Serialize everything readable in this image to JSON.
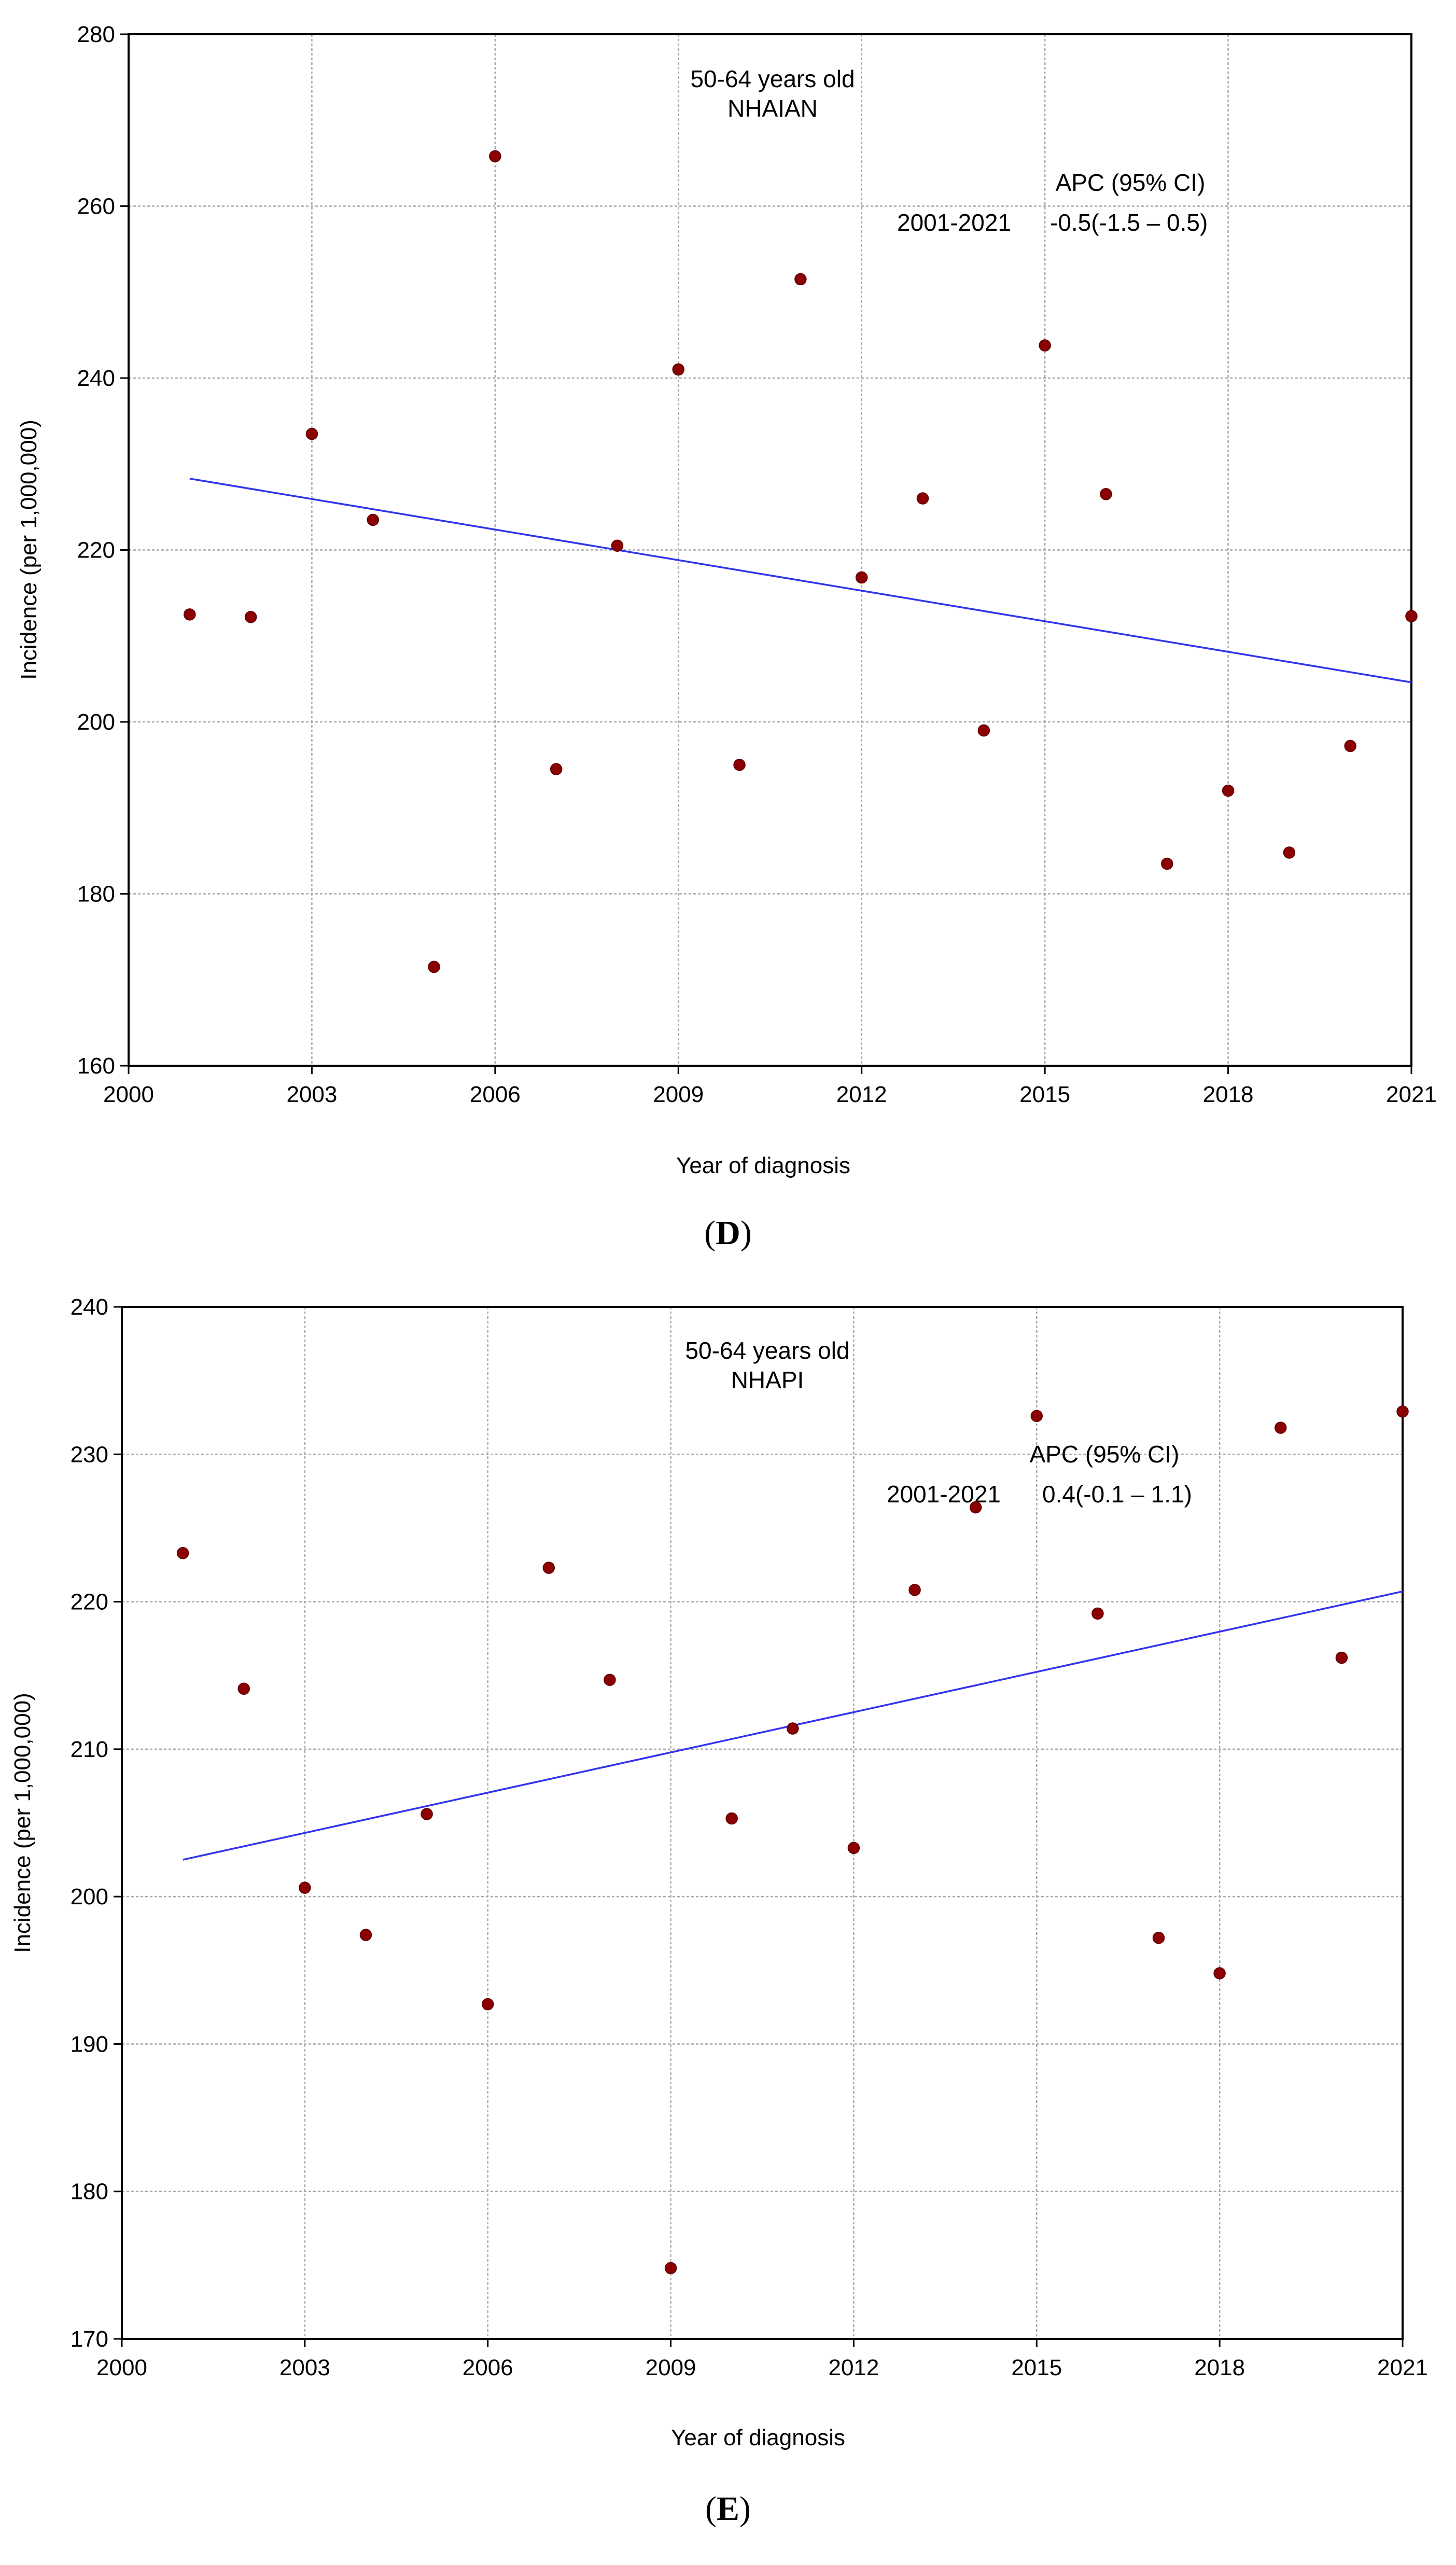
{
  "colors": {
    "point": "#8b0000",
    "trend": "#3333ee",
    "grid": "#a8a8a8",
    "frame": "#000000"
  },
  "chart_data": [
    {
      "panel": "D",
      "panel_label": "D",
      "type": "scatter",
      "title_line1": "50-64 years old",
      "title_line2": "NHAIAN",
      "xlabel": "Year of diagnosis",
      "ylabel": "Incidence (per 1,000,000)",
      "xlim": [
        2000,
        2021
      ],
      "ylim": [
        160,
        280
      ],
      "xticks": [
        2000,
        2003,
        2006,
        2009,
        2012,
        2015,
        2018,
        2021
      ],
      "yticks": [
        160,
        180,
        200,
        220,
        240,
        260,
        280
      ],
      "x": [
        2001,
        2002,
        2003,
        2004,
        2005,
        2006,
        2007,
        2008,
        2009,
        2010,
        2011,
        2012,
        2013,
        2014,
        2015,
        2016,
        2017,
        2018,
        2019,
        2020,
        2021
      ],
      "y": [
        212.5,
        212.2,
        233.5,
        223.5,
        171.5,
        265.8,
        194.5,
        220.5,
        241.0,
        195.0,
        251.5,
        216.8,
        226.0,
        199.0,
        243.8,
        226.5,
        183.5,
        192.0,
        184.8,
        197.2,
        212.3
      ],
      "trend": {
        "x": [
          2001,
          2021
        ],
        "y": [
          228.3,
          204.6
        ]
      },
      "apc_header": "APC (95% CI)",
      "apc_period": "2001-2021",
      "apc_value": "-0.5(-1.5 – 0.5)"
    },
    {
      "panel": "E",
      "panel_label": "E",
      "type": "scatter",
      "title_line1": "50-64 years old",
      "title_line2": "NHAPI",
      "xlabel": "Year of diagnosis",
      "ylabel": "Incidence (per 1,000,000)",
      "xlim": [
        2000,
        2021
      ],
      "ylim": [
        170,
        240
      ],
      "xticks": [
        2000,
        2003,
        2006,
        2009,
        2012,
        2015,
        2018,
        2021
      ],
      "yticks": [
        170,
        180,
        190,
        200,
        210,
        220,
        230,
        240
      ],
      "x": [
        2001,
        2002,
        2003,
        2004,
        2005,
        2006,
        2007,
        2008,
        2009,
        2010,
        2011,
        2012,
        2013,
        2014,
        2015,
        2016,
        2017,
        2018,
        2019,
        2020,
        2021
      ],
      "y": [
        223.3,
        214.1,
        200.6,
        197.4,
        205.6,
        192.7,
        222.3,
        214.7,
        174.8,
        205.3,
        211.4,
        203.3,
        220.8,
        226.4,
        232.6,
        219.2,
        197.2,
        194.8,
        231.8,
        216.2,
        232.9
      ],
      "trend": {
        "x": [
          2001,
          2021
        ],
        "y": [
          202.5,
          220.7
        ]
      },
      "apc_header": "APC (95% CI)",
      "apc_period": "2001-2021",
      "apc_value": "0.4(-0.1 – 1.1)"
    }
  ]
}
